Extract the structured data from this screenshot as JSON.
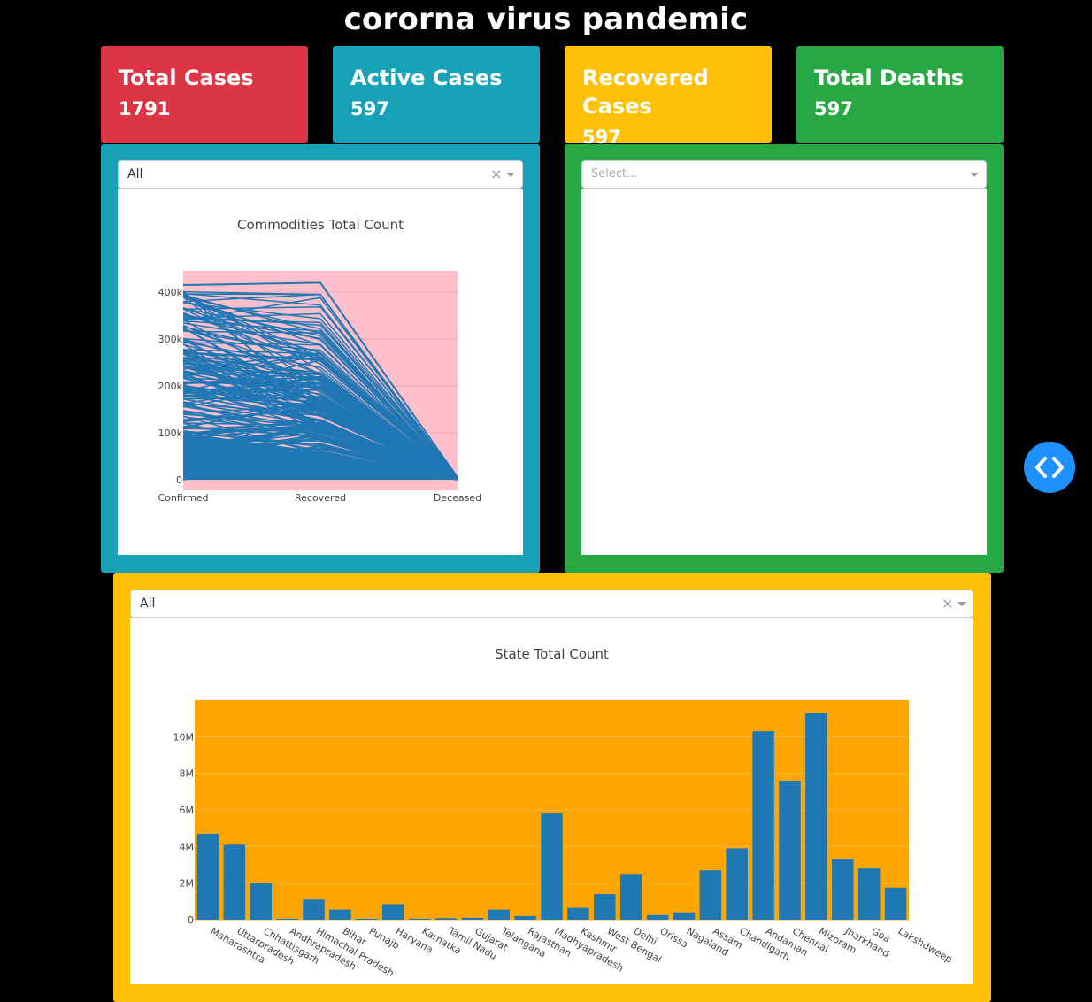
{
  "page": {
    "title": "cororna virus pandemic"
  },
  "cards": [
    {
      "label": "Total Cases",
      "value": "1791",
      "color": "#dc3545"
    },
    {
      "label": "Active Cases",
      "value": "597",
      "color": "#17a2b8"
    },
    {
      "label": "Recovered Cases",
      "value": "597",
      "color": "#ffc107"
    },
    {
      "label": "Total Deaths",
      "value": "597",
      "color": "#28a745"
    }
  ],
  "left_panel": {
    "color": "#17a2b8",
    "dropdown": {
      "value": "All",
      "clear_icon": "×"
    }
  },
  "right_panel": {
    "color": "#28a745",
    "dropdown": {
      "placeholder": "Select..."
    }
  },
  "bottom_panel": {
    "color": "#ffc107",
    "dropdown": {
      "value": "All",
      "clear_icon": "×"
    }
  },
  "nav_button": {
    "icon": "code-icon",
    "color": "#1e90ff"
  },
  "chart_data": [
    {
      "type": "line",
      "title": "Commodities Total Count",
      "plot_bgcolor": "#ffc0cb",
      "line_color": "#1f77b4",
      "categories": [
        "Confirmed",
        "Recovered",
        "Deceased"
      ],
      "ylim": [
        0,
        450000
      ],
      "yticks": [
        0,
        100000,
        200000,
        300000,
        400000
      ],
      "ytick_labels": [
        "0",
        "100k",
        "200k",
        "300k",
        "400k"
      ],
      "max_series": [
        415000,
        420000,
        5000
      ]
    },
    {
      "type": "bar",
      "title": "State Total Count",
      "plot_bgcolor": "#ffa500",
      "bar_color": "#1f77b4",
      "ylim": [
        0,
        12000000
      ],
      "yticks": [
        0,
        2000000,
        4000000,
        6000000,
        8000000,
        10000000
      ],
      "ytick_labels": [
        "0",
        "2M",
        "4M",
        "6M",
        "8M",
        "10M"
      ],
      "categories": [
        "Maharashtra",
        "Uttarpradesh",
        "Chhattisgarh",
        "Andhrapradesh",
        "Himachal Pradesh",
        "Bihar",
        "Punajb",
        "Haryana",
        "Karnatka",
        "Tamil Nadu",
        "Gujarat",
        "Telangana",
        "Rajasthan",
        "Madhyapradesh",
        "Kashmir",
        "West Bengal",
        "Delhi",
        "Orissa",
        "Nagaland",
        "Assam",
        "Chandigarh",
        "Andaman",
        "Chennai",
        "Mizoram",
        "Jharkhand",
        "Goa",
        "Lakshdweep"
      ],
      "values": [
        4700000,
        4100000,
        2000000,
        50000,
        1100000,
        550000,
        50000,
        850000,
        50000,
        80000,
        100000,
        550000,
        200000,
        5800000,
        650000,
        1400000,
        2500000,
        250000,
        400000,
        2700000,
        3900000,
        10300000,
        7600000,
        11300000,
        3300000,
        2800000,
        1750000
      ]
    }
  ]
}
